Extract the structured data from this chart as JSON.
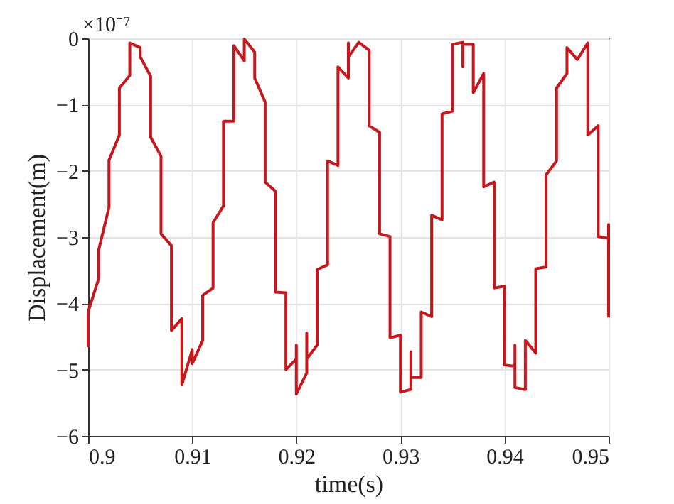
{
  "chart_data": {
    "type": "line",
    "xlabel": "time(s)",
    "ylabel": "Displacement(m)",
    "annotations": [
      "×10⁻⁷"
    ],
    "x": [
      0.9,
      0.9,
      0.901,
      0.901,
      0.902,
      0.902,
      0.903,
      0.903,
      0.904,
      0.904,
      0.905,
      0.905,
      0.906,
      0.906,
      0.907,
      0.907,
      0.908,
      0.908,
      0.909,
      0.909,
      0.91,
      0.91,
      0.911,
      0.911,
      0.912,
      0.912,
      0.913,
      0.913,
      0.914,
      0.914,
      0.915,
      0.915,
      0.916,
      0.916,
      0.917,
      0.917,
      0.918,
      0.918,
      0.919,
      0.919,
      0.92,
      0.92,
      0.92,
      0.921,
      0.921,
      0.921,
      0.922,
      0.922,
      0.923,
      0.923,
      0.924,
      0.924,
      0.925,
      0.925,
      0.925,
      0.926,
      0.927,
      0.927,
      0.928,
      0.928,
      0.929,
      0.929,
      0.93,
      0.93,
      0.931,
      0.931,
      0.931,
      0.932,
      0.932,
      0.933,
      0.933,
      0.934,
      0.934,
      0.935,
      0.935,
      0.936,
      0.936,
      0.936,
      0.937,
      0.937,
      0.938,
      0.938,
      0.939,
      0.939,
      0.94,
      0.94,
      0.941,
      0.941,
      0.941,
      0.942,
      0.942,
      0.943,
      0.943,
      0.944,
      0.944,
      0.945,
      0.945,
      0.946,
      0.946,
      0.947,
      0.948,
      0.948,
      0.949,
      0.949,
      0.95,
      0.95,
      0.95
    ],
    "series": [
      {
        "color": "#c8161d",
        "values": [
          -4.66,
          -4.13,
          -3.63,
          -3.2,
          -2.55,
          -1.84,
          -1.46,
          -0.75,
          -0.56,
          -0.07,
          -0.14,
          -0.28,
          -0.57,
          -1.49,
          -1.78,
          -2.95,
          -3.13,
          -4.41,
          -4.23,
          -5.23,
          -4.7,
          -4.91,
          -4.56,
          -3.88,
          -3.77,
          -2.78,
          -2.53,
          -1.25,
          -1.25,
          -0.11,
          -0.34,
          -0.01,
          -0.21,
          -0.6,
          -0.96,
          -2.17,
          -2.31,
          -3.83,
          -3.84,
          -5.0,
          -4.84,
          -4.63,
          -5.37,
          -5.05,
          -4.45,
          -4.84,
          -4.63,
          -3.49,
          -3.42,
          -1.85,
          -1.92,
          -0.43,
          -0.6,
          -0.07,
          -0.28,
          -0.06,
          -0.18,
          -1.32,
          -1.42,
          -2.95,
          -2.99,
          -4.52,
          -4.48,
          -5.34,
          -5.3,
          -4.73,
          -5.12,
          -5.12,
          -4.13,
          -4.2,
          -2.67,
          -2.74,
          -1.14,
          -1.1,
          -0.09,
          -0.06,
          -0.43,
          -0.09,
          -0.09,
          -0.82,
          -0.53,
          -2.24,
          -2.17,
          -3.77,
          -3.74,
          -4.93,
          -4.95,
          -4.63,
          -5.27,
          -5.3,
          -4.56,
          -4.75,
          -3.48,
          -3.45,
          -2.06,
          -1.85,
          -0.75,
          -0.53,
          -0.14,
          -0.32,
          -0.07,
          -1.46,
          -1.32,
          -2.99,
          -3.02,
          -2.81,
          -4.21
        ]
      }
    ],
    "xlim": [
      0.9,
      0.95
    ],
    "xticks": [
      0.9,
      0.91,
      0.92,
      0.93,
      0.94,
      0.95
    ],
    "ylim": [
      -6,
      0
    ],
    "yticks": [
      -6,
      -5,
      -4,
      -3,
      -2,
      -1,
      0
    ],
    "grid": true,
    "marker": "none",
    "line_style": "solid"
  }
}
